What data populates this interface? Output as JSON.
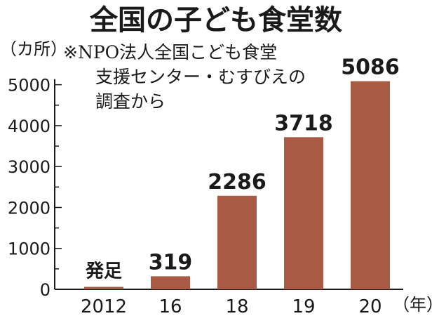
{
  "chart_data": {
    "type": "bar",
    "title": "全国の子ども食堂数",
    "y_unit_label": "（カ所）",
    "x_unit_label": "（年）",
    "source_note": [
      "※NPO法人全国こども食堂",
      "支援センター・むすびえの",
      "調査から"
    ],
    "categories": [
      "2012",
      "16",
      "18",
      "19",
      "20"
    ],
    "values": [
      60,
      319,
      2286,
      3718,
      5086
    ],
    "data_labels": [
      "",
      "319",
      "2286",
      "3718",
      "5086"
    ],
    "annotations": [
      {
        "category": "2012",
        "text": "発足"
      }
    ],
    "y_ticks": [
      "0",
      "1000",
      "2000",
      "3000",
      "4000",
      "5000"
    ],
    "ylim": [
      0,
      5500
    ],
    "bar_color": "#a85a44",
    "axis_color": "#1a1a1a",
    "grid": false,
    "legend": "none"
  }
}
